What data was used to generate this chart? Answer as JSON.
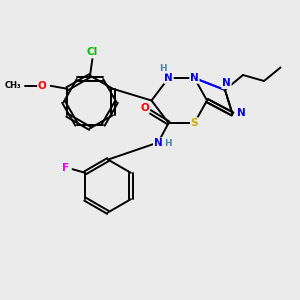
{
  "bg_color": "#ebebeb",
  "bond_color": "#000000",
  "colors": {
    "N": "#0000ee",
    "O": "#ff0000",
    "S": "#ccaa00",
    "Cl": "#00bb00",
    "F": "#ee00ee",
    "C": "#000000",
    "H": "#4488aa"
  }
}
